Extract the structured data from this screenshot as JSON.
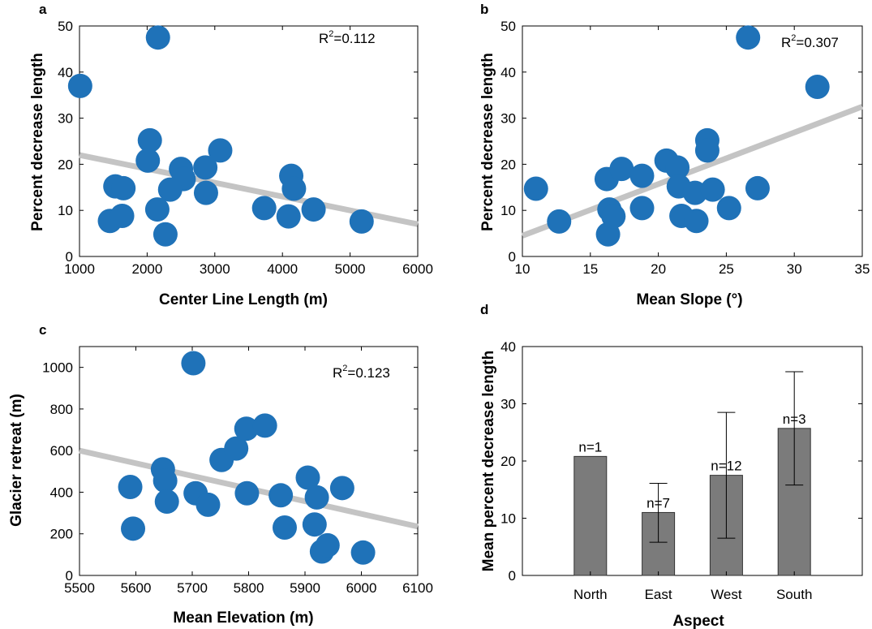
{
  "colors": {
    "points": "#1f72b8",
    "trend": "#c4c4c4",
    "bars": "#7b7b7b",
    "axis": "#000000"
  },
  "chart_data": [
    {
      "panel": "a",
      "type": "scatter",
      "xlabel": "Center Line Length (m)",
      "ylabel": "Percent decrease length",
      "xlim": [
        1000,
        6000
      ],
      "ylim": [
        0,
        50
      ],
      "xticks": [
        1000,
        2000,
        3000,
        4000,
        5000,
        6000
      ],
      "yticks": [
        0,
        10,
        20,
        30,
        40,
        50
      ],
      "annotation": {
        "base": "R",
        "sup": "2",
        "rest": "=0.112"
      },
      "trend": [
        [
          1000,
          22
        ],
        [
          6000,
          7
        ]
      ],
      "x": [
        1010,
        2160,
        2040,
        2010,
        1530,
        1650,
        1450,
        1630,
        2500,
        2540,
        2860,
        2870,
        3080,
        2340,
        2150,
        2270,
        4130,
        4170,
        3730,
        4090,
        4460,
        5170
      ],
      "y": [
        37,
        47.5,
        25.2,
        20.8,
        15.2,
        14.8,
        7.7,
        8.8,
        19,
        16.8,
        19.3,
        13.8,
        23,
        14.5,
        10.2,
        4.8,
        17.5,
        14.7,
        10.5,
        8.7,
        10.2,
        7.6
      ]
    },
    {
      "panel": "b",
      "type": "scatter",
      "xlabel": "Mean Slope (°)",
      "ylabel": "Percent decrease length",
      "xlim": [
        10,
        35
      ],
      "ylim": [
        0,
        50
      ],
      "xticks": [
        10,
        15,
        20,
        25,
        30,
        35
      ],
      "yticks": [
        0,
        10,
        20,
        30,
        40,
        50
      ],
      "annotation": {
        "base": "R",
        "sup": "2",
        "rest": "=0.307"
      },
      "trend": [
        [
          10,
          4.5
        ],
        [
          35,
          32.5
        ]
      ],
      "x": [
        26.6,
        31.7,
        23.6,
        23.6,
        11,
        12.7,
        16.2,
        16.3,
        16.4,
        16.7,
        17.3,
        18.8,
        18.8,
        20.6,
        21.4,
        21.5,
        21.7,
        22.7,
        22.8,
        24,
        25.2,
        27.3
      ],
      "y": [
        47.5,
        36.8,
        25.2,
        23,
        14.7,
        7.6,
        16.8,
        4.8,
        10.2,
        8.7,
        19,
        17.5,
        10.5,
        20.8,
        19.3,
        15.2,
        8.8,
        13.8,
        7.7,
        14.5,
        10.5,
        14.8
      ]
    },
    {
      "panel": "c",
      "type": "scatter",
      "xlabel": "Mean Elevation (m)",
      "ylabel": "Glacier retreat (m)",
      "xlim": [
        5500,
        6100
      ],
      "ylim": [
        0,
        1100
      ],
      "xticks": [
        5500,
        5600,
        5700,
        5800,
        5900,
        6000,
        6100
      ],
      "yticks": [
        0,
        200,
        400,
        600,
        800,
        1000
      ],
      "annotation": {
        "base": "R",
        "sup": "2",
        "rest": "=0.123"
      },
      "trend": [
        [
          5500,
          600
        ],
        [
          6100,
          235
        ]
      ],
      "x": [
        5702,
        5590,
        5595,
        5648,
        5652,
        5655,
        5706,
        5728,
        5752,
        5778,
        5796,
        5797,
        5829,
        5857,
        5864,
        5905,
        5917,
        5921,
        5930,
        5940,
        5966,
        6003
      ],
      "y": [
        1020,
        425,
        225,
        510,
        455,
        355,
        395,
        340,
        555,
        610,
        705,
        395,
        720,
        385,
        230,
        470,
        245,
        375,
        115,
        145,
        420,
        110
      ]
    },
    {
      "panel": "d",
      "type": "bar",
      "xlabel": "Aspect",
      "ylabel": "Mean percent decrease length",
      "ylim": [
        0,
        40
      ],
      "yticks": [
        0,
        10,
        20,
        30,
        40
      ],
      "categories": [
        "North",
        "East",
        "West",
        "South"
      ],
      "values": [
        20.8,
        11,
        17.5,
        25.7
      ],
      "error_low": [
        20.8,
        5.8,
        6.5,
        15.8
      ],
      "error_high": [
        20.8,
        16.1,
        28.5,
        35.6
      ],
      "bar_labels": [
        "n=1",
        "n=7",
        "n=12",
        "n=3"
      ]
    }
  ]
}
